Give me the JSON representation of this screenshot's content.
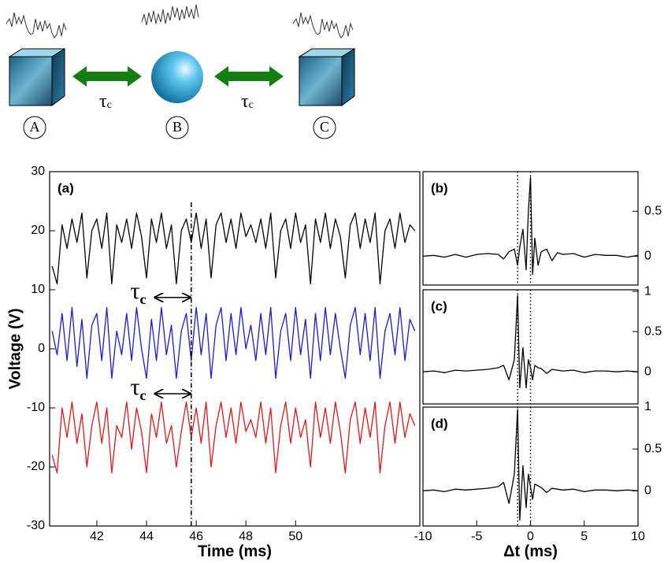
{
  "diagram": {
    "nodes": [
      {
        "label": "A"
      },
      {
        "label": "B"
      },
      {
        "label": "C"
      }
    ],
    "links": [
      {
        "symbol": "τ",
        "subscript": "c"
      },
      {
        "symbol": "τ",
        "subscript": "c"
      }
    ]
  },
  "chart_data": [
    {
      "type": "line",
      "panel_label": "(a)",
      "x_label": "Time (ms)",
      "y_label": "Voltage (V)",
      "x": [
        40.2,
        40.4,
        40.6,
        40.8,
        41.0,
        41.2,
        41.4,
        41.6,
        41.8,
        42.0,
        42.2,
        42.4,
        42.6,
        42.8,
        43.0,
        43.2,
        43.4,
        43.6,
        43.8,
        44.0,
        44.2,
        44.4,
        44.6,
        44.8,
        45.0,
        45.2,
        45.4,
        45.6,
        45.8,
        46.0,
        46.2,
        46.4,
        46.6,
        46.8,
        47.0,
        47.2,
        47.4,
        47.6,
        47.8,
        48.0,
        48.2,
        48.4,
        48.6,
        48.8,
        49.0,
        49.2,
        49.4,
        49.6,
        49.8,
        50.0,
        50.2,
        50.4,
        50.6,
        50.8,
        51.0,
        51.2,
        51.4,
        51.6,
        51.8,
        52.0,
        52.2,
        52.4,
        52.6,
        52.8,
        53.0,
        53.2,
        53.4,
        53.6,
        53.8,
        54.0,
        54.2,
        54.4,
        54.6,
        54.8
      ],
      "series": [
        {
          "color": "#000000",
          "values": [
            14,
            11,
            21,
            17,
            22,
            18,
            23,
            12,
            20,
            22,
            17,
            23,
            11,
            21,
            18,
            22,
            17,
            23,
            19,
            12,
            22,
            18,
            23,
            17,
            21,
            11,
            20,
            22,
            18,
            23,
            17,
            22,
            12,
            21,
            23,
            18,
            22,
            17,
            23,
            19,
            21,
            18,
            22,
            17,
            23,
            12,
            20,
            22,
            17,
            23,
            18,
            21,
            11,
            22,
            18,
            23,
            17,
            22,
            19,
            12,
            21,
            23,
            17,
            22,
            18,
            23,
            11,
            20,
            22,
            17,
            23,
            18,
            21,
            20
          ]
        },
        {
          "color": "#1a1adc",
          "values": [
            3,
            -1,
            6,
            -2,
            7,
            -3,
            5,
            -5,
            4,
            6,
            -2,
            7,
            -5,
            3,
            -1,
            6,
            -2,
            7,
            0,
            -5,
            5,
            -2,
            7,
            -1,
            4,
            -5,
            3,
            6,
            -2,
            7,
            -1,
            6,
            -5,
            4,
            7,
            -2,
            6,
            -1,
            7,
            0,
            4,
            -2,
            6,
            -1,
            7,
            -5,
            3,
            6,
            -2,
            7,
            -1,
            5,
            -5,
            6,
            -2,
            7,
            -1,
            6,
            0,
            -5,
            4,
            7,
            -1,
            6,
            -2,
            7,
            -5,
            3,
            6,
            -1,
            7,
            -2,
            5,
            3
          ]
        },
        {
          "color": "#e01818",
          "values": [
            -18,
            -21,
            -10,
            -15,
            -9,
            -16,
            -11,
            -20,
            -13,
            -9,
            -16,
            -10,
            -21,
            -13,
            -15,
            -9,
            -17,
            -10,
            -14,
            -21,
            -11,
            -15,
            -9,
            -16,
            -13,
            -20,
            -14,
            -9,
            -15,
            -10,
            -16,
            -9,
            -20,
            -13,
            -9,
            -15,
            -10,
            -16,
            -9,
            -14,
            -12,
            -15,
            -9,
            -16,
            -10,
            -21,
            -13,
            -9,
            -16,
            -10,
            -15,
            -12,
            -20,
            -9,
            -15,
            -10,
            -16,
            -9,
            -14,
            -21,
            -12,
            -9,
            -16,
            -10,
            -15,
            -9,
            -21,
            -13,
            -9,
            -16,
            -9,
            -15,
            -11,
            -13
          ]
        }
      ],
      "xlim": [
        40.1,
        55.0
      ],
      "ylim": [
        -30,
        30
      ],
      "xticks": [
        42,
        44,
        46,
        48,
        50
      ],
      "yticks": [
        -30,
        -20,
        -10,
        0,
        10,
        20,
        30
      ],
      "vlines": [
        {
          "x": 45.8,
          "y": [
            -30,
            25
          ]
        }
      ],
      "arrows": [
        {
          "x": [
            44.3,
            45.8
          ],
          "y": 8.7,
          "symbol": "τ",
          "subscript": "c"
        },
        {
          "x": [
            44.3,
            45.8
          ],
          "y": -7.6,
          "symbol": "τ",
          "subscript": "c"
        }
      ]
    },
    {
      "type": "line",
      "panel_label": "(b)",
      "x": [
        -10,
        -9,
        -8,
        -7,
        -6,
        -5,
        -4,
        -3,
        -2.5,
        -2,
        -1.5,
        -1.2,
        -1,
        -0.7,
        -0.4,
        -0.2,
        0,
        0.2,
        0.4,
        0.7,
        1,
        1.5,
        2,
        2.5,
        3,
        4,
        5,
        6,
        7,
        8,
        9,
        10
      ],
      "series": [
        {
          "color": "#000000",
          "values": [
            0,
            0.01,
            -0.01,
            0.02,
            -0.01,
            0.02,
            0.03,
            0.02,
            -0.03,
            0.05,
            0.08,
            -0.1,
            0.1,
            0.3,
            -0.15,
            0.5,
            0.88,
            -0.2,
            0.2,
            -0.1,
            0.05,
            0.08,
            -0.05,
            0.04,
            0.02,
            0.03,
            -0.01,
            0.02,
            0.01,
            0.01,
            -0.01,
            0.01
          ]
        }
      ],
      "xlim": [
        -10,
        10
      ],
      "ylim": [
        -0.32,
        0.94
      ],
      "yticks": [
        0,
        0.5
      ],
      "vlines": [
        {
          "x": -1.2
        },
        {
          "x": 0
        }
      ]
    },
    {
      "type": "line",
      "panel_label": "(c)",
      "x": [
        -10,
        -9,
        -8,
        -7,
        -6,
        -5,
        -4,
        -3,
        -2.5,
        -2,
        -1.5,
        -1.2,
        -1,
        -0.7,
        -0.4,
        -0.2,
        0,
        0.2,
        0.4,
        0.7,
        1,
        1.5,
        2,
        2.5,
        3,
        4,
        5,
        6,
        7,
        8,
        9,
        10
      ],
      "series": [
        {
          "color": "#000000",
          "values": [
            0,
            0.01,
            -0.01,
            0.02,
            0.01,
            0.02,
            0.03,
            0.05,
            0.08,
            -0.1,
            0.15,
            0.95,
            -0.2,
            0.3,
            -0.2,
            0.15,
            0.05,
            -0.1,
            0.08,
            0.05,
            0.04,
            -0.02,
            0.03,
            0.02,
            0.01,
            0.02,
            -0.01,
            0.01,
            0.01,
            0,
            0.01,
            0
          ]
        }
      ],
      "xlim": [
        -10,
        10
      ],
      "ylim": [
        -0.4,
        1.02
      ],
      "yticks": [
        0,
        0.5,
        1
      ],
      "vlines": [
        {
          "x": -1.2
        },
        {
          "x": 0
        }
      ]
    },
    {
      "type": "line",
      "panel_label": "(d)",
      "x_label": "Δt (ms)",
      "x": [
        -10,
        -9,
        -8,
        -7,
        -6,
        -5,
        -4,
        -3,
        -2.5,
        -2,
        -1.5,
        -1.2,
        -1,
        -0.7,
        -0.4,
        -0.2,
        0,
        0.2,
        0.4,
        0.7,
        1,
        1.5,
        2,
        2.5,
        3,
        4,
        5,
        6,
        7,
        8,
        9,
        10
      ],
      "series": [
        {
          "color": "#000000",
          "values": [
            0,
            0.01,
            -0.01,
            0.02,
            0.01,
            0.02,
            0.03,
            0.05,
            0.1,
            -0.15,
            0.2,
            0.97,
            -0.35,
            0.3,
            -0.2,
            0.2,
            0.05,
            -0.1,
            0.08,
            0.06,
            0.04,
            -0.02,
            0.03,
            0.02,
            0.01,
            0.02,
            -0.01,
            0.01,
            0.01,
            0,
            0.01,
            0
          ]
        }
      ],
      "xlim": [
        -10,
        10
      ],
      "ylim": [
        -0.42,
        1.0
      ],
      "xticks": [
        -10,
        -5,
        0,
        5,
        10
      ],
      "yticks": [
        0,
        0.5,
        1
      ],
      "vlines": [
        {
          "x": -1.2
        },
        {
          "x": 0
        }
      ]
    }
  ]
}
